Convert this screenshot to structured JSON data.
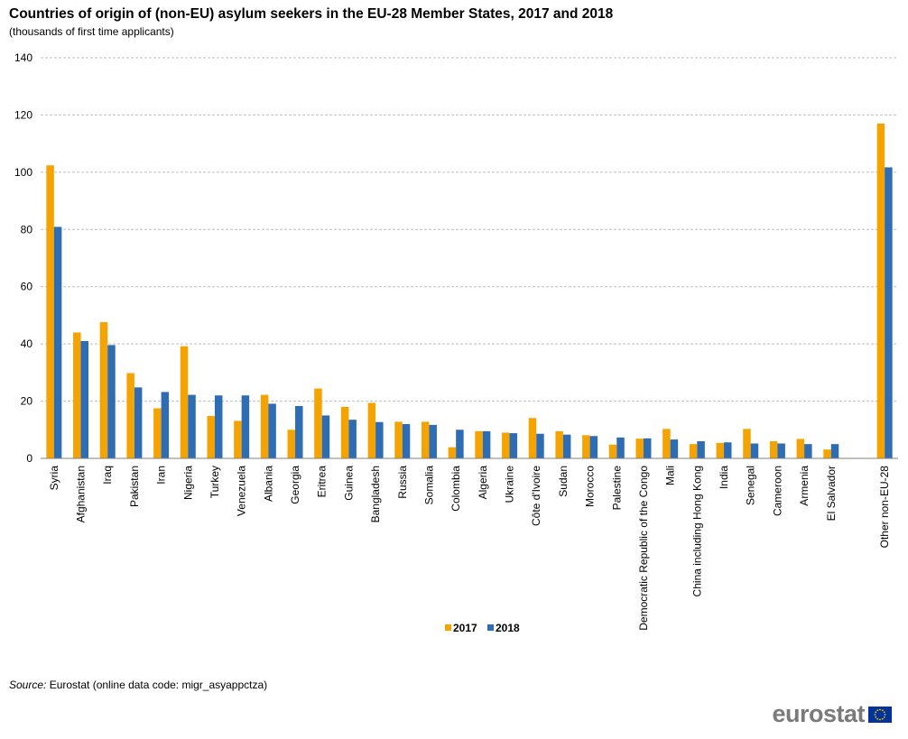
{
  "title": "Countries of origin of (non-EU) asylum seekers in the EU-28 Member States, 2017 and 2018",
  "subtitle": "(thousands  of first time applicants)",
  "source_label": "Source:",
  "source_text": " Eurostat (online data code: migr_asyappctza)",
  "logo_text": "eurostat",
  "colors": {
    "s2017": "#F5A300",
    "s2018": "#2E6DB4",
    "grid": "#BFBFBF",
    "axis": "#808080"
  },
  "chart_data": {
    "type": "bar",
    "title": "Countries of origin of (non-EU) asylum seekers in the EU-28 Member States, 2017 and 2018",
    "subtitle": "(thousands  of first time applicants)",
    "ylim": [
      0,
      140
    ],
    "yticks": [
      0,
      20,
      40,
      60,
      80,
      100,
      120,
      140
    ],
    "grid": true,
    "legend": "bottom-center",
    "categories": [
      "Syria",
      "Afghanistan",
      "Iraq",
      "Pakistan",
      "Iran",
      "Nigeria",
      "Turkey",
      "Venezuela",
      "Albania",
      "Georgia",
      "Eritrea",
      "Guinea",
      "Bangladesh",
      "Russia",
      "Somalia",
      "Colombia",
      "Algeria",
      "Ukraine",
      "Côte d'Ivoire",
      "Sudan",
      "Morocco",
      "Palestine",
      "Democratic Republic of the Congo",
      "Mali",
      "China including Hong Kong",
      "India",
      "Senegal",
      "Cameroon",
      "Armenia",
      "El Salvador",
      "",
      "Other non-EU-28"
    ],
    "series": [
      {
        "name": "2017",
        "color": "#F5A300",
        "values": [
          102.4,
          44.0,
          47.6,
          29.8,
          17.5,
          39.2,
          14.8,
          13.1,
          22.2,
          10.0,
          24.4,
          18.0,
          19.4,
          12.8,
          12.8,
          3.9,
          9.5,
          9.0,
          14.1,
          9.5,
          8.1,
          4.8,
          6.9,
          10.3,
          5.0,
          5.4,
          10.3,
          6.0,
          6.8,
          3.1,
          null,
          117.0
        ]
      },
      {
        "name": "2018",
        "color": "#2E6DB4",
        "values": [
          80.9,
          41.0,
          39.6,
          24.8,
          23.2,
          22.2,
          22.0,
          22.0,
          19.1,
          18.3,
          15.0,
          13.5,
          12.7,
          12.0,
          11.7,
          10.0,
          9.5,
          8.8,
          8.6,
          8.3,
          7.8,
          7.3,
          7.0,
          6.6,
          6.0,
          5.6,
          5.2,
          5.2,
          5.0,
          5.0,
          null,
          101.7
        ]
      }
    ]
  }
}
